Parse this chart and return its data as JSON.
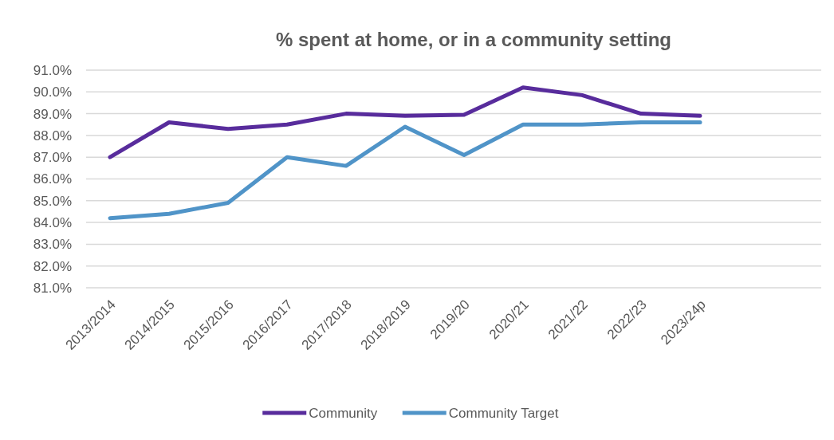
{
  "chart_data": {
    "type": "line",
    "title": "% spent at home, or in a community setting",
    "categories": [
      "2013/2014",
      "2014/2015",
      "2015/2016",
      "2016/2017",
      "2017/2018",
      "2018/2019",
      "2019/20",
      "2020/21",
      "2021/22",
      "2022/23",
      "2023/24p"
    ],
    "series": [
      {
        "name": "Community",
        "color": "#582c9c",
        "values": [
          87.0,
          88.6,
          88.3,
          88.5,
          89.0,
          88.9,
          88.95,
          90.2,
          89.85,
          89.0,
          88.9
        ]
      },
      {
        "name": "Community Target",
        "color": "#5094c8",
        "values": [
          84.2,
          84.4,
          84.9,
          87.0,
          86.6,
          88.4,
          87.1,
          88.5,
          88.5,
          88.6,
          88.6
        ]
      }
    ],
    "ylim": [
      81,
      91
    ],
    "yticks": [
      {
        "value": 81,
        "label": "81.0%"
      },
      {
        "value": 82,
        "label": "82.0%"
      },
      {
        "value": 83,
        "label": "83.0%"
      },
      {
        "value": 84,
        "label": "84.0%"
      },
      {
        "value": 85,
        "label": "85.0%"
      },
      {
        "value": 86,
        "label": "86.0%"
      },
      {
        "value": 87,
        "label": "87.0%"
      },
      {
        "value": 88,
        "label": "88.0%"
      },
      {
        "value": 89,
        "label": "89.0%"
      },
      {
        "value": 90,
        "label": "90.0%"
      },
      {
        "value": 91,
        "label": "91.0%"
      }
    ],
    "grid": "y",
    "legend": "bottom",
    "marker": "none",
    "line_style": "solid"
  }
}
